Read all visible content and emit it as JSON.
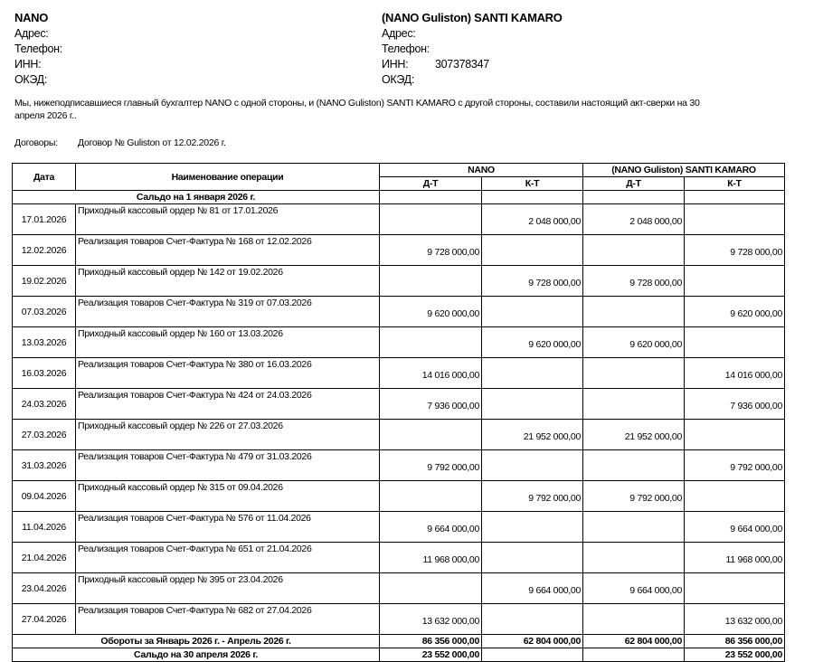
{
  "left_party": {
    "name": "NANO",
    "address_label": "Адрес:",
    "phone_label": "Телефон:",
    "inn_label": "ИНН:",
    "inn": "",
    "okved_label": "ОКЭД:"
  },
  "right_party": {
    "name": "(NANO Guliston) SANTI KAMARO",
    "address_label": "Адрес:",
    "phone_label": "Телефон:",
    "inn_label": "ИНН:",
    "inn": "307378347",
    "okved_label": "ОКЭД:"
  },
  "intro_line1": "Мы, нижеподписавшиеся главный бухгалтер  NANO с одной стороны, и  (NANO Guliston) SANTI KAMARO  с другой стороны, составили настоящий акт-сверки на 30",
  "intro_line2": "апреля 2026 г..",
  "contracts_label": "Договоры:",
  "contracts_value": "Договор № Guliston от 12.02.2026 г.",
  "table": {
    "col_date": "Дата",
    "col_op": "Наименование  операции",
    "party1": "NANO",
    "party2": "(NANO Guliston) SANTI KAMARO",
    "debit": "Д-Т",
    "credit": "К-Т",
    "opening": "Сальдо на  1 января 2026 г.",
    "rows": [
      [
        "17.01.2026",
        "Приходный кассовый ордер № 81 от 17.01.2026",
        "",
        "2 048 000,00",
        "2 048 000,00",
        ""
      ],
      [
        "12.02.2026",
        "Реализация товаров Счет-Фактура № 168 от 12.02.2026",
        "9 728 000,00",
        "",
        "",
        "9 728 000,00"
      ],
      [
        "19.02.2026",
        "Приходный кассовый ордер № 142 от 19.02.2026",
        "",
        "9 728 000,00",
        "9 728 000,00",
        ""
      ],
      [
        "07.03.2026",
        "Реализация товаров Счет-Фактура № 319 от 07.03.2026",
        "9 620 000,00",
        "",
        "",
        "9 620 000,00"
      ],
      [
        "13.03.2026",
        "Приходный кассовый ордер № 160 от 13.03.2026",
        "",
        "9 620 000,00",
        "9 620 000,00",
        ""
      ],
      [
        "16.03.2026",
        "Реализация товаров Счет-Фактура № 380 от 16.03.2026",
        "14 016 000,00",
        "",
        "",
        "14 016 000,00"
      ],
      [
        "24.03.2026",
        "Реализация товаров Счет-Фактура № 424 от 24.03.2026",
        "7 936 000,00",
        "",
        "",
        "7 936 000,00"
      ],
      [
        "27.03.2026",
        "Приходный кассовый ордер № 226 от 27.03.2026",
        "",
        "21 952 000,00",
        "21 952 000,00",
        ""
      ],
      [
        "31.03.2026",
        "Реализация товаров Счет-Фактура № 479 от 31.03.2026",
        "9 792 000,00",
        "",
        "",
        "9 792 000,00"
      ],
      [
        "09.04.2026",
        "Приходный кассовый ордер № 315 от 09.04.2026",
        "",
        "9 792 000,00",
        "9 792 000,00",
        ""
      ],
      [
        "11.04.2026",
        "Реализация товаров Счет-Фактура № 576 от 11.04.2026",
        "9 664 000,00",
        "",
        "",
        "9 664 000,00"
      ],
      [
        "21.04.2026",
        "Реализация товаров Счет-Фактура № 651 от 21.04.2026",
        "11 968 000,00",
        "",
        "",
        "11 968 000,00"
      ],
      [
        "23.04.2026",
        "Приходный кассовый ордер № 395 от 23.04.2026",
        "",
        "9 664 000,00",
        "9 664 000,00",
        ""
      ],
      [
        "27.04.2026",
        "Реализация товаров Счет-Фактура № 682 от 27.04.2026",
        "13 632 000,00",
        "",
        "",
        "13 632 000,00"
      ]
    ],
    "turnover_label": "Обороты за Январь 2026 г. - Апрель 2026 г.",
    "turnover": [
      "86 356 000,00",
      "62 804 000,00",
      "62 804 000,00",
      "86 356 000,00"
    ],
    "closing_label": "Сальдо на  30 апреля 2026 г.",
    "closing": [
      "23 552 000,00",
      "",
      "",
      "23 552 000,00"
    ]
  }
}
